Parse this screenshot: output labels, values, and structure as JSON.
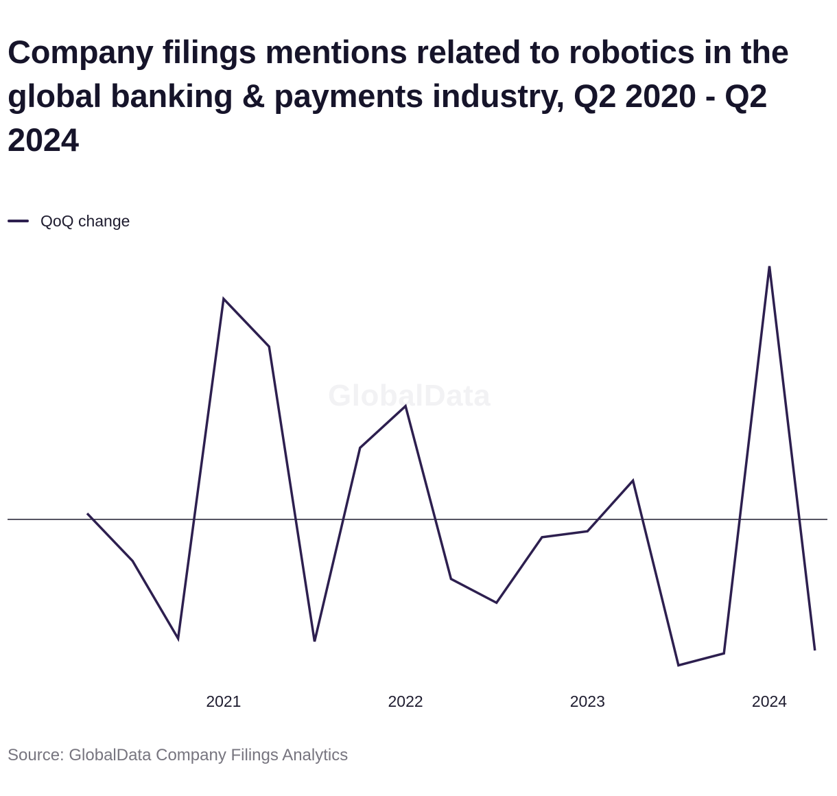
{
  "chart_data": {
    "type": "line",
    "title": "Company filings mentions related to robotics in the global banking & payments industry, Q2 2020 - Q2 2024",
    "xlabel": "",
    "ylabel": "",
    "x": [
      "Q2 2020",
      "Q3 2020",
      "Q4 2020",
      "Q1 2021",
      "Q2 2021",
      "Q3 2021",
      "Q4 2021",
      "Q1 2022",
      "Q2 2022",
      "Q3 2022",
      "Q4 2022",
      "Q1 2023",
      "Q2 2023",
      "Q3 2023",
      "Q4 2023",
      "Q1 2024",
      "Q2 2024"
    ],
    "tick_labels": [
      "2021",
      "2022",
      "2023",
      "2024"
    ],
    "series": [
      {
        "name": "QoQ change",
        "color": "#2d1f4f",
        "values": [
          0.02,
          -0.14,
          -0.4,
          0.74,
          0.58,
          -0.41,
          0.24,
          0.38,
          -0.2,
          -0.28,
          -0.06,
          -0.04,
          0.13,
          -0.49,
          -0.45,
          0.85,
          -0.44
        ]
      }
    ],
    "ylim": [
      -0.56,
      0.96
    ],
    "zero_line": true,
    "grid": false,
    "legend_position": "top-left"
  },
  "watermark": "GlobalData",
  "source": "Source: GlobalData Company Filings Analytics"
}
